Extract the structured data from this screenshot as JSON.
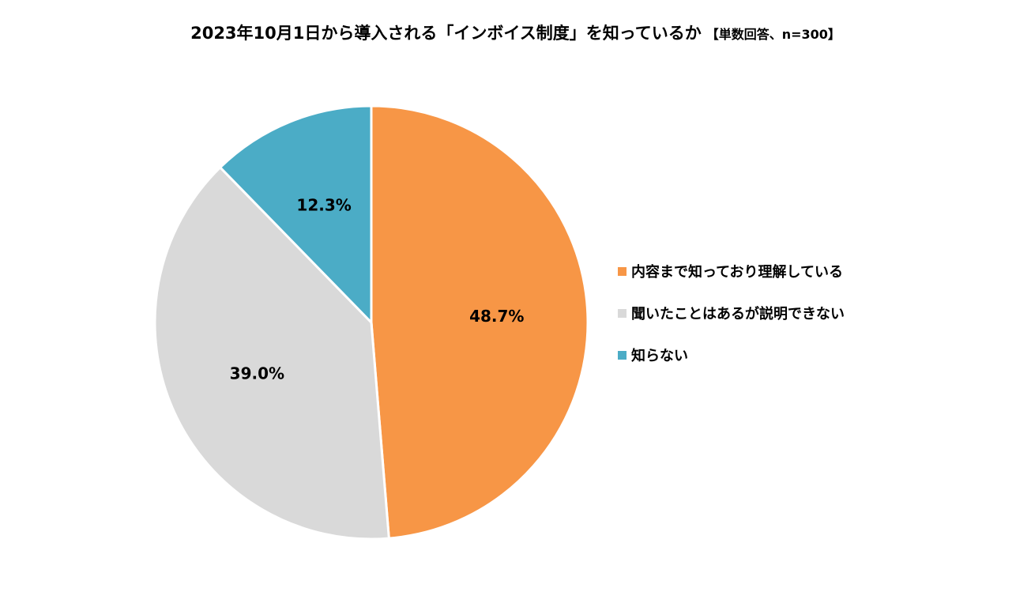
{
  "chart_data": {
    "type": "pie",
    "title": "2023年10月1日から導入される「インボイス制度」を知っているか",
    "subtitle": "【単数回答、n=300】",
    "categories": [
      "内容まで知っており理解している",
      "聞いたことはあるが説明できない",
      "知らない"
    ],
    "values": [
      48.7,
      39.0,
      12.3
    ],
    "labels": [
      "48.7%",
      "39.0%",
      "12.3%"
    ],
    "colors": [
      "#F79646",
      "#D9D9D9",
      "#4BACC6"
    ],
    "legend_position": "right",
    "start": "top, clockwise"
  }
}
